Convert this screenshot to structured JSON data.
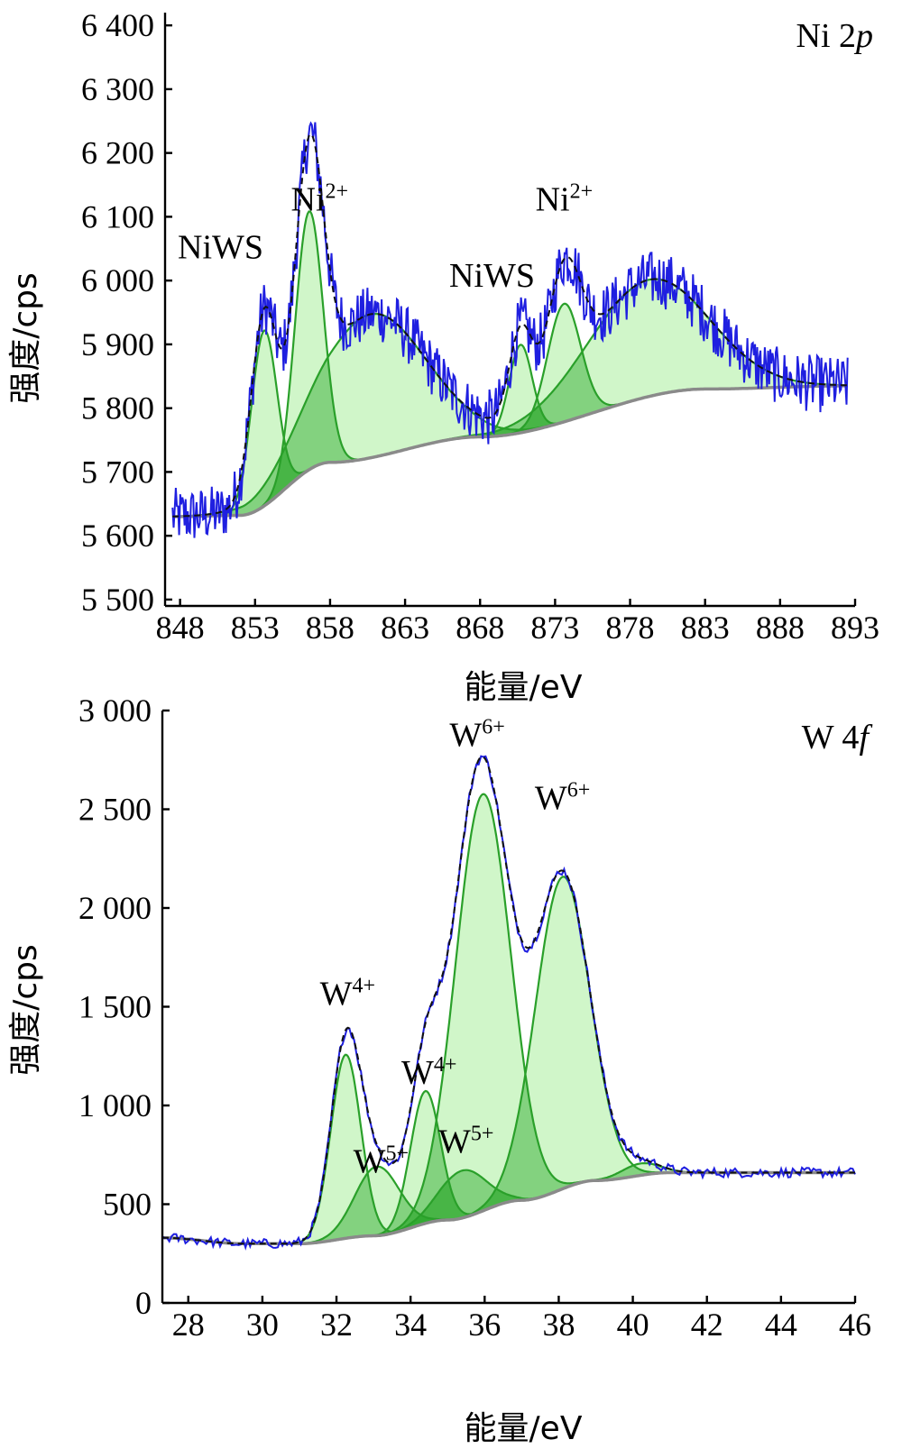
{
  "colors": {
    "raw_spectrum": "#1f1fe0",
    "envelope": "#111111",
    "component_line": "#2aa02a",
    "component_fill": "#c8f5c0",
    "overlap_fill": "#2fa82f",
    "background": "#8a8a8a"
  },
  "chart_data": [
    {
      "type": "line",
      "panel_title": "Ni 2p",
      "panel_title_main": "Ni 2",
      "panel_title_italic": "p",
      "xlabel": "能量/eV",
      "ylabel": "强度/cps",
      "xlim": [
        847,
        893
      ],
      "ylim": [
        5490,
        6420
      ],
      "xticks": [
        "848",
        "853",
        "858",
        "863",
        "868",
        "873",
        "878",
        "883",
        "888",
        "893"
      ],
      "xtick_values": [
        848,
        853,
        858,
        863,
        868,
        873,
        878,
        883,
        888,
        893
      ],
      "yticks": [
        "5 500",
        "5 600",
        "5 700",
        "5 800",
        "5 900",
        "6 000",
        "6 100",
        "6 200",
        "6 300",
        "6 400"
      ],
      "ytick_values": [
        5500,
        5600,
        5700,
        5800,
        5900,
        6000,
        6100,
        6200,
        6300,
        6400
      ],
      "background": {
        "x": [
          847.5,
          852,
          858,
          868,
          883,
          892.5
        ],
        "y": [
          5630,
          5632,
          5715,
          5755,
          5830,
          5835
        ]
      },
      "peaks": [
        {
          "label": "NiWS",
          "center": 853.6,
          "height": 275,
          "fwhm": 2.0
        },
        {
          "label": "Ni",
          "sup": "2+",
          "center": 856.6,
          "height": 405,
          "fwhm": 2.2
        },
        {
          "label": "",
          "center": 860.7,
          "height": 225,
          "fwhm": 8.5
        },
        {
          "label": "NiWS",
          "center": 870.7,
          "height": 138,
          "fwhm": 1.8
        },
        {
          "label": "Ni",
          "sup": "2+",
          "center": 873.6,
          "height": 185,
          "fwhm": 2.6
        },
        {
          "label": "",
          "center": 879.2,
          "height": 183,
          "fwhm": 9.5
        }
      ],
      "noise_amplitude": 45,
      "annotations": [
        {
          "text": "NiWS",
          "sup": "",
          "x": 850.7,
          "y": 6035
        },
        {
          "text": "Ni",
          "sup": "2+",
          "x": 857.3,
          "y": 6110
        },
        {
          "text": "NiWS",
          "sup": "",
          "x": 868.8,
          "y": 5990
        },
        {
          "text": "Ni",
          "sup": "2+",
          "x": 873.6,
          "y": 6110
        }
      ]
    },
    {
      "type": "line",
      "panel_title": "W 4f",
      "panel_title_main": "W 4",
      "panel_title_italic": "f",
      "xlabel": "能量/eV",
      "ylabel": "强度/cps",
      "xlim": [
        27.3,
        46
      ],
      "ylim": [
        0,
        3000
      ],
      "xticks": [
        "28",
        "30",
        "32",
        "34",
        "36",
        "38",
        "40",
        "42",
        "44",
        "46"
      ],
      "xtick_values": [
        28,
        30,
        32,
        34,
        36,
        38,
        40,
        42,
        44,
        46
      ],
      "yticks": [
        "0",
        "500",
        "1 000",
        "1 500",
        "2 000",
        "2 500",
        "3 000"
      ],
      "ytick_values": [
        0,
        500,
        1000,
        1500,
        2000,
        2500,
        3000
      ],
      "background": {
        "x": [
          27.3,
          29.5,
          31,
          33,
          35,
          37,
          39,
          41,
          46
        ],
        "y": [
          330,
          300,
          300,
          340,
          420,
          520,
          620,
          660,
          660
        ]
      },
      "peaks": [
        {
          "label": "W",
          "sup": "4+",
          "center": 32.25,
          "height": 930,
          "fwhm": 0.95
        },
        {
          "label": "W",
          "sup": "5+",
          "center": 33.1,
          "height": 350,
          "fwhm": 1.4
        },
        {
          "label": "W",
          "sup": "4+",
          "center": 34.4,
          "height": 670,
          "fwhm": 0.95
        },
        {
          "label": "W",
          "sup": "5+",
          "center": 35.4,
          "height": 240,
          "fwhm": 1.5
        },
        {
          "label": "W",
          "sup": "6+",
          "center": 35.95,
          "height": 2110,
          "fwhm": 1.75
        },
        {
          "label": "W",
          "sup": "6+",
          "center": 38.1,
          "height": 1580,
          "fwhm": 1.75
        },
        {
          "label": "",
          "center": 40.2,
          "height": 60,
          "fwhm": 1.2
        }
      ],
      "noise_amplitude": 25,
      "annotations": [
        {
          "text": "W",
          "sup": "4+",
          "x": 32.3,
          "y": 1510
        },
        {
          "text": "W",
          "sup": "5+",
          "x": 33.2,
          "y": 660
        },
        {
          "text": "W",
          "sup": "4+",
          "x": 34.5,
          "y": 1110
        },
        {
          "text": "W",
          "sup": "5+",
          "x": 35.5,
          "y": 760
        },
        {
          "text": "W",
          "sup": "6+",
          "x": 35.8,
          "y": 2820
        },
        {
          "text": "W",
          "sup": "6+",
          "x": 38.1,
          "y": 2500
        }
      ]
    }
  ]
}
